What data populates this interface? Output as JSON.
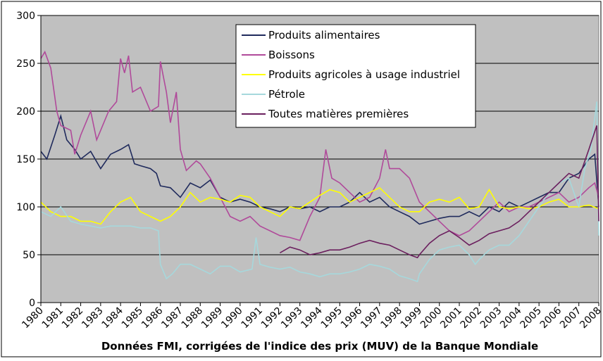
{
  "chart_data": {
    "type": "line",
    "caption": "Données FMI, corrigées de l'indice des prix (MUV) de la Banque Mondiale",
    "xlim": [
      1980,
      2008
    ],
    "xticks": [
      1980,
      1981,
      1982,
      1983,
      1984,
      1985,
      1986,
      1987,
      1988,
      1989,
      1990,
      1991,
      1992,
      1993,
      1994,
      1995,
      1996,
      1997,
      1998,
      1999,
      2000,
      2001,
      2002,
      2003,
      2004,
      2005,
      2006,
      2007,
      2008
    ],
    "ylim": [
      0,
      300
    ],
    "yticks": [
      0,
      50,
      100,
      150,
      200,
      250,
      300
    ],
    "grid": true,
    "series": [
      {
        "name": "Produits alimentaires",
        "color": "#1f2a5c",
        "x": [
          1980,
          1980.3,
          1980.7,
          1981,
          1981.3,
          1981.7,
          1982,
          1982.5,
          1983,
          1983.5,
          1984,
          1984.4,
          1984.7,
          1985,
          1985.5,
          1985.8,
          1986,
          1986.5,
          1987,
          1987.5,
          1988,
          1988.5,
          1989,
          1989.5,
          1990,
          1990.5,
          1991,
          1991.5,
          1992,
          1992.5,
          1993,
          1993.5,
          1994,
          1994.5,
          1995,
          1995.5,
          1996,
          1996.5,
          1997,
          1997.5,
          1998,
          1998.5,
          1999,
          1999.5,
          2000,
          2000.5,
          2001,
          2001.5,
          2002,
          2002.5,
          2003,
          2003.5,
          2004,
          2004.5,
          2005,
          2005.5,
          2006,
          2006.5,
          2007,
          2007.5,
          2007.8,
          2008
        ],
        "values": [
          158,
          150,
          175,
          195,
          170,
          160,
          150,
          158,
          140,
          155,
          160,
          165,
          145,
          143,
          140,
          135,
          122,
          120,
          110,
          125,
          120,
          128,
          110,
          105,
          108,
          105,
          100,
          98,
          95,
          100,
          98,
          100,
          95,
          100,
          100,
          105,
          115,
          105,
          110,
          100,
          95,
          90,
          82,
          85,
          88,
          90,
          90,
          95,
          90,
          100,
          95,
          105,
          100,
          105,
          110,
          115,
          115,
          130,
          135,
          150,
          155,
          100
        ]
      },
      {
        "name": "Boissons",
        "color": "#b04a9a",
        "x": [
          1980,
          1980.2,
          1980.5,
          1980.8,
          1981,
          1981.5,
          1981.7,
          1982,
          1982.5,
          1982.8,
          1983,
          1983.4,
          1983.8,
          1984,
          1984.2,
          1984.4,
          1984.6,
          1985,
          1985.5,
          1985.9,
          1986,
          1986.3,
          1986.5,
          1986.8,
          1987,
          1987.3,
          1987.8,
          1988,
          1988.5,
          1989,
          1989.5,
          1990,
          1990.5,
          1991,
          1991.5,
          1992,
          1992.5,
          1993,
          1993.5,
          1994,
          1994.3,
          1994.6,
          1995,
          1995.5,
          1996,
          1996.5,
          1997,
          1997.3,
          1997.5,
          1998,
          1998.5,
          1999,
          1999.5,
          2000,
          2000.5,
          2001,
          2001.5,
          2002,
          2002.5,
          2003,
          2003.5,
          2004,
          2004.5,
          2005,
          2005.5,
          2006,
          2006.5,
          2007,
          2007.5,
          2007.8,
          2008
        ],
        "values": [
          255,
          262,
          245,
          200,
          185,
          180,
          155,
          175,
          200,
          170,
          180,
          200,
          210,
          255,
          240,
          258,
          220,
          225,
          200,
          205,
          252,
          220,
          188,
          220,
          160,
          138,
          148,
          145,
          130,
          110,
          90,
          85,
          90,
          80,
          75,
          70,
          68,
          65,
          90,
          110,
          160,
          130,
          125,
          115,
          105,
          110,
          130,
          160,
          140,
          140,
          130,
          105,
          95,
          85,
          75,
          70,
          75,
          85,
          95,
          105,
          95,
          100,
          100,
          105,
          110,
          115,
          105,
          110,
          120,
          125,
          110
        ]
      },
      {
        "name": "Produits agricoles à usage industriel",
        "color": "#ffff00",
        "x": [
          1980,
          1980.5,
          1981,
          1981.5,
          1982,
          1982.5,
          1983,
          1983.5,
          1984,
          1984.5,
          1985,
          1985.5,
          1986,
          1986.5,
          1987,
          1987.5,
          1988,
          1988.5,
          1989,
          1989.5,
          1990,
          1990.5,
          1991,
          1991.5,
          1992,
          1992.5,
          1993,
          1993.5,
          1994,
          1994.5,
          1995,
          1995.5,
          1996,
          1996.5,
          1997,
          1997.5,
          1998,
          1998.5,
          1999,
          1999.5,
          2000,
          2000.5,
          2001,
          2001.5,
          2002,
          2002.5,
          2003,
          2003.5,
          2004,
          2004.5,
          2005,
          2005.5,
          2006,
          2006.5,
          2007,
          2007.5,
          2008
        ],
        "values": [
          105,
          95,
          90,
          90,
          85,
          85,
          82,
          95,
          105,
          110,
          95,
          90,
          85,
          90,
          100,
          115,
          105,
          110,
          108,
          105,
          112,
          110,
          100,
          95,
          90,
          100,
          98,
          105,
          112,
          118,
          115,
          105,
          110,
          115,
          120,
          110,
          100,
          95,
          95,
          105,
          108,
          105,
          110,
          98,
          100,
          118,
          100,
          98,
          100,
          98,
          100,
          105,
          108,
          100,
          100,
          102,
          98
        ]
      },
      {
        "name": "Pétrole",
        "color": "#a6d8dc",
        "x": [
          1980,
          1980.5,
          1981,
          1981.5,
          1982,
          1982.5,
          1983,
          1983.5,
          1984,
          1984.5,
          1985,
          1985.5,
          1985.9,
          1986,
          1986.3,
          1986.6,
          1987,
          1987.5,
          1988,
          1988.5,
          1989,
          1989.5,
          1990,
          1990.6,
          1990.8,
          1991,
          1991.5,
          1992,
          1992.5,
          1993,
          1993.5,
          1994,
          1994.5,
          1995,
          1995.5,
          1996,
          1996.5,
          1997,
          1997.5,
          1998,
          1998.5,
          1998.9,
          1999,
          1999.5,
          2000,
          2000.5,
          2001,
          2001.5,
          2001.8,
          2002,
          2002.5,
          2003,
          2003.5,
          2004,
          2004.5,
          2005,
          2005.5,
          2006,
          2006.5,
          2007,
          2007.3,
          2007.6,
          2007.9,
          2008
        ],
        "values": [
          95,
          90,
          100,
          85,
          82,
          80,
          78,
          80,
          80,
          80,
          78,
          78,
          75,
          40,
          25,
          30,
          40,
          40,
          35,
          30,
          38,
          38,
          32,
          35,
          68,
          40,
          37,
          35,
          37,
          32,
          30,
          27,
          30,
          30,
          32,
          35,
          40,
          38,
          35,
          28,
          25,
          22,
          30,
          45,
          55,
          58,
          60,
          50,
          40,
          45,
          55,
          60,
          60,
          70,
          85,
          100,
          115,
          125,
          130,
          100,
          140,
          160,
          210,
          70
        ]
      },
      {
        "name": "Toutes matières premières",
        "color": "#6b1f5e",
        "x": [
          1992,
          1992.5,
          1993,
          1993.5,
          1994,
          1994.5,
          1995,
          1995.5,
          1996,
          1996.5,
          1997,
          1997.5,
          1998,
          1998.5,
          1998.9,
          1999,
          1999.5,
          2000,
          2000.5,
          2001,
          2001.5,
          2002,
          2002.5,
          2003,
          2003.5,
          2004,
          2004.5,
          2005,
          2005.5,
          2006,
          2006.5,
          2007,
          2007.5,
          2007.9,
          2008
        ],
        "values": [
          52,
          58,
          55,
          50,
          52,
          55,
          55,
          58,
          62,
          65,
          62,
          60,
          55,
          50,
          47,
          50,
          62,
          70,
          75,
          68,
          60,
          65,
          72,
          75,
          78,
          85,
          95,
          105,
          115,
          125,
          135,
          130,
          160,
          185,
          85
        ]
      }
    ]
  }
}
